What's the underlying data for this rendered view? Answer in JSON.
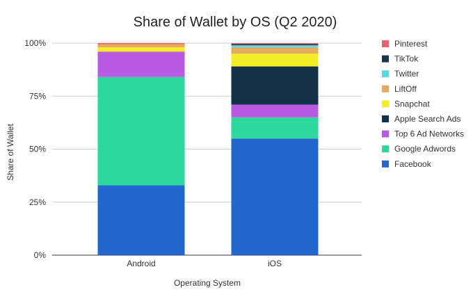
{
  "chart_data": {
    "type": "bar",
    "stacked": true,
    "title": "Share of Wallet by OS (Q2 2020)",
    "xlabel": "Operating System",
    "ylabel": "Share of Wallet",
    "categories": [
      "Android",
      "iOS"
    ],
    "ylim": [
      0,
      100
    ],
    "yticks": [
      "0%",
      "25%",
      "50%",
      "75%",
      "100%"
    ],
    "grid": true,
    "legend_position": "right",
    "series": [
      {
        "name": "Facebook",
        "color": "#2266d0",
        "values": [
          33,
          55
        ]
      },
      {
        "name": "Google Adwords",
        "color": "#2dd89c",
        "values": [
          51,
          10
        ]
      },
      {
        "name": "Top 6 Ad Networks",
        "color": "#b85ae2",
        "values": [
          12,
          6
        ]
      },
      {
        "name": "Apple Search Ads",
        "color": "#13324a",
        "values": [
          0,
          18
        ]
      },
      {
        "name": "Snapchat",
        "color": "#f2ed24",
        "values": [
          2,
          6
        ]
      },
      {
        "name": "LiftOff",
        "color": "#e5aa5a",
        "values": [
          1.5,
          3
        ]
      },
      {
        "name": "Twitter",
        "color": "#5ad8e5",
        "values": [
          0,
          1
        ]
      },
      {
        "name": "TikTok",
        "color": "#1a3448",
        "values": [
          0,
          0.5
        ]
      },
      {
        "name": "Pinterest",
        "color": "#e8626e",
        "values": [
          0.5,
          0.5
        ]
      }
    ]
  }
}
